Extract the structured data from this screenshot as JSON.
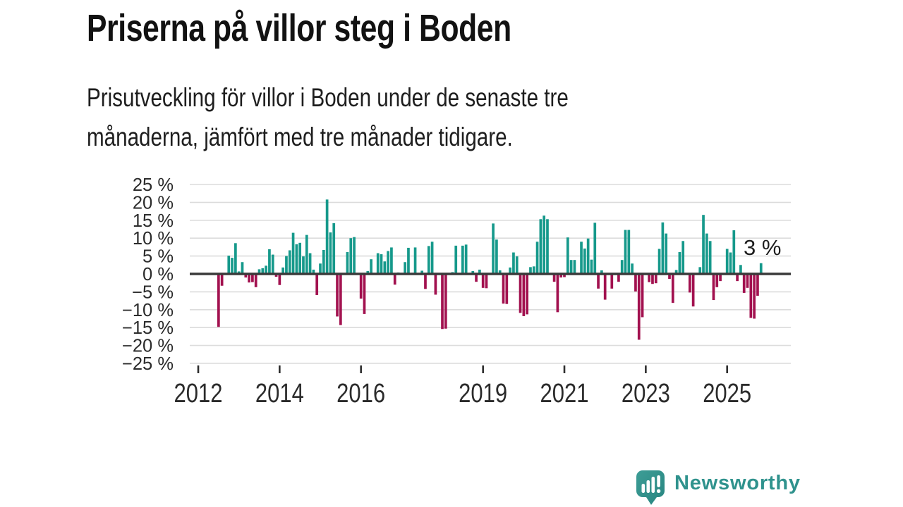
{
  "title": "Priserna på villor steg i Boden",
  "subtitle": {
    "line1": "Prisutveckling för villor i Boden under de senaste tre",
    "line2": "månaderna, jämfört med tre månader tidigare."
  },
  "annotation": {
    "label": "3 %"
  },
  "logo": {
    "brand": "Newsworthy",
    "icon": "speech-bubble-bar-chart-icon"
  },
  "colors": {
    "positive": "#16998b",
    "negative": "#a2114f",
    "grid": "#dcdcdc",
    "zero_line": "#3a3a3a",
    "axis_text": "#2b2b2b",
    "tick": "#2e2e2e",
    "logo_teal": "#2f928d"
  },
  "chart_data": {
    "type": "bar",
    "title": "Priserna på villor steg i Boden",
    "xlabel": "",
    "ylabel": "",
    "unit": "%",
    "ylim": [
      -25,
      25
    ],
    "grid": true,
    "y_ticks": [
      {
        "label": "25 %",
        "value": 25
      },
      {
        "label": "20 %",
        "value": 20
      },
      {
        "label": "15 %",
        "value": 15
      },
      {
        "label": "10 %",
        "value": 10
      },
      {
        "label": "5 %",
        "value": 5
      },
      {
        "label": "0 %",
        "value": 0
      },
      {
        "label": "−5 %",
        "value": -5
      },
      {
        "label": "−10 %",
        "value": -10
      },
      {
        "label": "−15 %",
        "value": -15
      },
      {
        "label": "−20 %",
        "value": -20
      },
      {
        "label": "−25 %",
        "value": -25
      }
    ],
    "x_ticks": [
      {
        "label": "2012",
        "month_index": 0
      },
      {
        "label": "2014",
        "month_index": 24
      },
      {
        "label": "2016",
        "month_index": 48
      },
      {
        "label": "2019",
        "month_index": 84
      },
      {
        "label": "2021",
        "month_index": 108
      },
      {
        "label": "2023",
        "month_index": 132
      },
      {
        "label": "2025",
        "month_index": 156
      }
    ],
    "last_value_label": "3 %",
    "series": [
      {
        "name": "Prisutveckling villor Boden, 3 mån vs föregående 3 mån (%)",
        "points": [
          [
            "2012-07",
            -14.8
          ],
          [
            "2012-08",
            -3.3
          ],
          [
            "2012-10",
            5.1
          ],
          [
            "2012-11",
            4.5
          ],
          [
            "2012-12",
            8.6
          ],
          [
            "2013-01",
            0.7
          ],
          [
            "2013-02",
            3.3
          ],
          [
            "2013-03",
            -1.0
          ],
          [
            "2013-04",
            -2.4
          ],
          [
            "2013-05",
            -2.3
          ],
          [
            "2013-06",
            -3.7
          ],
          [
            "2013-07",
            1.3
          ],
          [
            "2013-08",
            1.6
          ],
          [
            "2013-09",
            2.3
          ],
          [
            "2013-10",
            6.9
          ],
          [
            "2013-11",
            5.4
          ],
          [
            "2013-12",
            -0.8
          ],
          [
            "2014-01",
            -3.1
          ],
          [
            "2014-02",
            1.8
          ],
          [
            "2014-03",
            5.0
          ],
          [
            "2014-04",
            6.6
          ],
          [
            "2014-05",
            11.5
          ],
          [
            "2014-06",
            8.3
          ],
          [
            "2014-07",
            8.7
          ],
          [
            "2014-08",
            4.9
          ],
          [
            "2014-09",
            10.9
          ],
          [
            "2014-10",
            5.8
          ],
          [
            "2014-11",
            1.2
          ],
          [
            "2014-12",
            -5.9
          ],
          [
            "2015-01",
            2.9
          ],
          [
            "2015-02",
            6.7
          ],
          [
            "2015-03",
            20.8
          ],
          [
            "2015-04",
            11.6
          ],
          [
            "2015-05",
            14.2
          ],
          [
            "2015-06",
            -11.9
          ],
          [
            "2015-07",
            -14.3
          ],
          [
            "2015-09",
            6.1
          ],
          [
            "2015-10",
            10.0
          ],
          [
            "2015-11",
            10.3
          ],
          [
            "2016-01",
            -6.9
          ],
          [
            "2016-02",
            -11.2
          ],
          [
            "2016-03",
            0.8
          ],
          [
            "2016-04",
            4.1
          ],
          [
            "2016-06",
            5.8
          ],
          [
            "2016-07",
            5.5
          ],
          [
            "2016-08",
            3.5
          ],
          [
            "2016-09",
            6.4
          ],
          [
            "2016-10",
            7.4
          ],
          [
            "2016-11",
            -3.0
          ],
          [
            "2016-12",
            0.4
          ],
          [
            "2017-02",
            3.3
          ],
          [
            "2017-03",
            7.3
          ],
          [
            "2017-05",
            7.4
          ],
          [
            "2017-07",
            0.9
          ],
          [
            "2017-08",
            -4.2
          ],
          [
            "2017-09",
            7.8
          ],
          [
            "2017-10",
            9.0
          ],
          [
            "2017-11",
            -5.8
          ],
          [
            "2018-01",
            -15.4
          ],
          [
            "2018-02",
            -15.3
          ],
          [
            "2018-04",
            0.5
          ],
          [
            "2018-05",
            7.9
          ],
          [
            "2018-07",
            7.9
          ],
          [
            "2018-08",
            8.2
          ],
          [
            "2018-10",
            0.8
          ],
          [
            "2018-11",
            -2.2
          ],
          [
            "2018-12",
            1.2
          ],
          [
            "2019-01",
            -3.9
          ],
          [
            "2019-02",
            -4.0
          ],
          [
            "2019-04",
            14.1
          ],
          [
            "2019-05",
            9.6
          ],
          [
            "2019-06",
            1.0
          ],
          [
            "2019-07",
            -8.3
          ],
          [
            "2019-08",
            -8.4
          ],
          [
            "2019-09",
            1.8
          ],
          [
            "2019-10",
            6.0
          ],
          [
            "2019-11",
            4.9
          ],
          [
            "2019-12",
            -10.9
          ],
          [
            "2020-01",
            -11.8
          ],
          [
            "2020-02",
            -11.3
          ],
          [
            "2020-03",
            1.9
          ],
          [
            "2020-04",
            2.1
          ],
          [
            "2020-05",
            9.0
          ],
          [
            "2020-06",
            15.3
          ],
          [
            "2020-07",
            16.3
          ],
          [
            "2020-08",
            15.3
          ],
          [
            "2020-10",
            -2.2
          ],
          [
            "2020-11",
            -10.7
          ],
          [
            "2020-12",
            -1.0
          ],
          [
            "2021-01",
            -0.9
          ],
          [
            "2021-02",
            10.2
          ],
          [
            "2021-03",
            3.9
          ],
          [
            "2021-04",
            3.9
          ],
          [
            "2021-06",
            9.0
          ],
          [
            "2021-07",
            7.1
          ],
          [
            "2021-08",
            9.9
          ],
          [
            "2021-09",
            4.0
          ],
          [
            "2021-10",
            14.3
          ],
          [
            "2021-11",
            -4.1
          ],
          [
            "2021-12",
            1.0
          ],
          [
            "2022-01",
            -7.2
          ],
          [
            "2022-03",
            -4.1
          ],
          [
            "2022-05",
            -2.2
          ],
          [
            "2022-06",
            3.9
          ],
          [
            "2022-07",
            12.3
          ],
          [
            "2022-08",
            12.3
          ],
          [
            "2022-09",
            2.9
          ],
          [
            "2022-10",
            -4.9
          ],
          [
            "2022-11",
            -18.4
          ],
          [
            "2022-12",
            -12.1
          ],
          [
            "2023-02",
            -2.3
          ],
          [
            "2023-03",
            -2.8
          ],
          [
            "2023-04",
            -2.6
          ],
          [
            "2023-05",
            7.0
          ],
          [
            "2023-06",
            14.4
          ],
          [
            "2023-07",
            11.3
          ],
          [
            "2023-08",
            -1.4
          ],
          [
            "2023-09",
            -8.1
          ],
          [
            "2023-10",
            1.1
          ],
          [
            "2023-11",
            6.1
          ],
          [
            "2023-12",
            9.2
          ],
          [
            "2024-02",
            -5.2
          ],
          [
            "2024-03",
            -9.1
          ],
          [
            "2024-05",
            1.9
          ],
          [
            "2024-06",
            16.5
          ],
          [
            "2024-07",
            11.3
          ],
          [
            "2024-08",
            9.2
          ],
          [
            "2024-09",
            -7.3
          ],
          [
            "2024-10",
            -3.7
          ],
          [
            "2024-11",
            -2.0
          ],
          [
            "2025-01",
            7.0
          ],
          [
            "2025-02",
            6.0
          ],
          [
            "2025-03",
            12.2
          ],
          [
            "2025-04",
            -2.0
          ],
          [
            "2025-05",
            2.5
          ],
          [
            "2025-06",
            -5.3
          ],
          [
            "2025-07",
            -3.9
          ],
          [
            "2025-08",
            -12.3
          ],
          [
            "2025-09",
            -12.5
          ],
          [
            "2025-10",
            -6.1
          ],
          [
            "2025-11",
            3.0
          ]
        ]
      }
    ],
    "legend": "none",
    "positive_color": "#16998b",
    "negative_color": "#a2114f"
  }
}
